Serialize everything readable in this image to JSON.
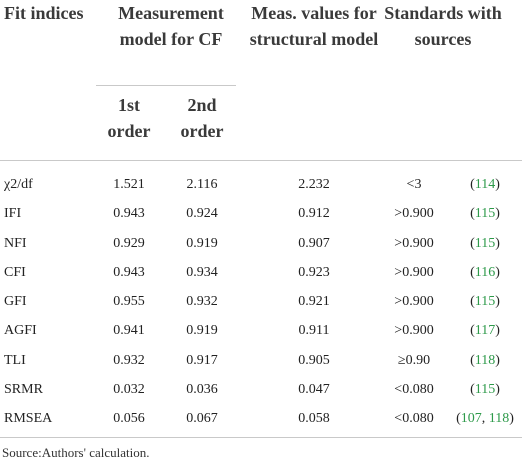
{
  "header": {
    "fit_indices": "Fit indices",
    "measurement_model": "Measurement model for CF",
    "first_order": "1st order",
    "second_order": "2nd order",
    "structural": "Meas. values for structural model",
    "standards": "Standards with sources"
  },
  "rows": [
    {
      "index": "χ2/df",
      "first": "1.521",
      "second": "2.116",
      "structural": "2.232",
      "standard": "<3",
      "refs": [
        "114"
      ]
    },
    {
      "index": "IFI",
      "first": "0.943",
      "second": "0.924",
      "structural": "0.912",
      "standard": ">0.900",
      "refs": [
        "115"
      ]
    },
    {
      "index": "NFI",
      "first": "0.929",
      "second": "0.919",
      "structural": "0.907",
      "standard": ">0.900",
      "refs": [
        "115"
      ]
    },
    {
      "index": "CFI",
      "first": "0.943",
      "second": "0.934",
      "structural": "0.923",
      "standard": ">0.900",
      "refs": [
        "116"
      ]
    },
    {
      "index": "GFI",
      "first": "0.955",
      "second": "0.932",
      "structural": "0.921",
      "standard": ">0.900",
      "refs": [
        "115"
      ]
    },
    {
      "index": "AGFI",
      "first": "0.941",
      "second": "0.919",
      "structural": "0.911",
      "standard": ">0.900",
      "refs": [
        "117"
      ]
    },
    {
      "index": "TLI",
      "first": "0.932",
      "second": "0.917",
      "structural": "0.905",
      "standard": "≥0.90",
      "refs": [
        "118"
      ]
    },
    {
      "index": "SRMR",
      "first": "0.032",
      "second": "0.036",
      "structural": "0.047",
      "standard": "<0.080",
      "refs": [
        "115"
      ]
    },
    {
      "index": "RMSEA",
      "first": "0.056",
      "second": "0.067",
      "structural": "0.058",
      "standard": "<0.080",
      "refs": [
        "107",
        "118"
      ]
    }
  ],
  "footer": {
    "source": "Source:Authors' calculation."
  },
  "colors": {
    "reference_link": "#2e9a4a",
    "rule": "#c9c9c9"
  }
}
